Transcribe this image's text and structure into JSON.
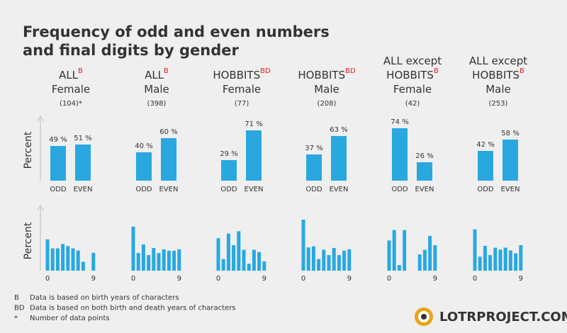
{
  "chart_data": {
    "type": "bar",
    "title": [
      "Frequency of odd and even numbers",
      "and final digits by gender"
    ],
    "y_label": "Percent",
    "color": "#29a8e0",
    "ylim": [
      0,
      90
    ],
    "digit_ylim": [
      0,
      22
    ],
    "digit_categories": [
      0,
      null,
      null,
      null,
      null,
      null,
      null,
      null,
      null,
      9
    ],
    "categories": [
      "ODD",
      "EVEN"
    ],
    "panels": [
      {
        "title_lines": [
          "ALL",
          "Female"
        ],
        "superscript": "B",
        "count": "(104)*",
        "values": [
          49,
          51
        ],
        "value_labels": [
          "49 %",
          "51 %"
        ],
        "digit_values": [
          13.5,
          9.6,
          9.6,
          11.5,
          10.6,
          9.6,
          8.7,
          3.8,
          0,
          7.7
        ]
      },
      {
        "title_lines": [
          "ALL",
          "Male"
        ],
        "superscript": "B",
        "count": "(398)",
        "values": [
          40,
          60
        ],
        "value_labels": [
          "40 %",
          "60 %"
        ],
        "digit_values": [
          19,
          7.6,
          11.3,
          6.7,
          9.8,
          7.6,
          9.2,
          8.6,
          8.6,
          9.2
        ]
      },
      {
        "title_lines": [
          "HOBBITS",
          "Female"
        ],
        "superscript": "BD",
        "count": "(77)",
        "values": [
          29,
          71
        ],
        "value_labels": [
          "29 %",
          "71 %"
        ],
        "digit_values": [
          14,
          5,
          16,
          11,
          17,
          9,
          3,
          9,
          8,
          4
        ]
      },
      {
        "title_lines": [
          "HOBBITS",
          "Male"
        ],
        "superscript": "BD",
        "count": "(208)",
        "values": [
          37,
          63
        ],
        "value_labels": [
          "37 %",
          "63 %"
        ],
        "digit_values": [
          22,
          10,
          10.5,
          5,
          9,
          6.7,
          9.8,
          6.7,
          8.6,
          9.2
        ]
      },
      {
        "title_lines": [
          "ALL except",
          "HOBBITS",
          "Female"
        ],
        "superscript": "B",
        "count": "(42)",
        "values": [
          74,
          26
        ],
        "value_labels": [
          "74 %",
          "26 %"
        ],
        "digit_values": [
          13,
          17.5,
          2.4,
          17.5,
          0,
          0,
          7,
          9,
          15,
          11
        ]
      },
      {
        "title_lines": [
          "ALL except",
          "HOBBITS",
          "Male"
        ],
        "superscript": "B",
        "count": "(253)",
        "values": [
          42,
          58
        ],
        "value_labels": [
          "42 %",
          "58 %"
        ],
        "digit_values": [
          17.8,
          6,
          10.7,
          6.7,
          9.9,
          9.1,
          9.9,
          8.7,
          7.5,
          11
        ]
      }
    ],
    "footnotes": [
      {
        "mark": "B",
        "text": "Data is based on birth years of characters"
      },
      {
        "mark": "BD",
        "text": "Data is based on both birth and death years of characters"
      },
      {
        "mark": "*",
        "text": "Number of data points"
      }
    ],
    "logo": "LOTRPROJECT.COM"
  }
}
